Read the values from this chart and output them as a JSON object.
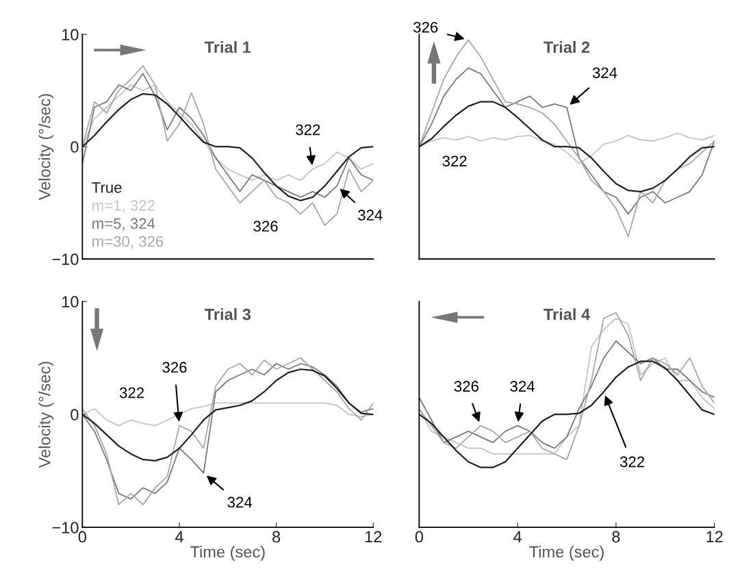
{
  "chart_data": [
    {
      "type": "line",
      "title": "Trial 1",
      "ylabel": "Velocity (°/sec)",
      "x": [
        0,
        0.5,
        1,
        1.5,
        2,
        2.5,
        3,
        3.5,
        4,
        4.5,
        5,
        5.5,
        6,
        6.5,
        7,
        7.5,
        8,
        8.5,
        9,
        9.5,
        10,
        10.5,
        11,
        11.5,
        12
      ],
      "xlim": [
        0,
        12
      ],
      "ylim": [
        -10,
        10
      ],
      "yticks": [
        10,
        0,
        {
          "value": -10,
          "label": "−10"
        }
      ],
      "tick_labels": "y",
      "legend": "bottom left",
      "series": [
        {
          "name": "True",
          "color": "#222222",
          "values": [
            0,
            1.0,
            2.2,
            3.3,
            4.2,
            4.7,
            4.6,
            3.8,
            2.7,
            1.5,
            0.4,
            0,
            0,
            -0.1,
            -1.0,
            -2.3,
            -3.5,
            -4.4,
            -4.8,
            -4.5,
            -3.5,
            -2.2,
            -0.9,
            -0.1,
            0
          ]
        },
        {
          "name": "m=1, 322",
          "color": "#c4c4c4",
          "values": [
            0,
            2.5,
            3.5,
            4.5,
            5.5,
            5.0,
            5.5,
            4.0,
            3.0,
            2.0,
            0.5,
            -1.0,
            -2.0,
            -2.5,
            -3.0,
            -2.5,
            -3.0,
            -2.5,
            -3.0,
            -2.0,
            -1.5,
            -0.5,
            -1.0,
            -2.0,
            -1.5
          ]
        },
        {
          "name": "m=5, 324",
          "color": "#7a7a7a",
          "values": [
            -1.5,
            3.5,
            4.0,
            5.5,
            5.0,
            6.5,
            4.5,
            1.5,
            3.5,
            2.5,
            1.0,
            -1.0,
            -2.5,
            -4.0,
            -2.5,
            -3.0,
            -3.5,
            -4.0,
            -4.5,
            -4.0,
            -4.5,
            -3.5,
            -1.0,
            -2.5,
            -3.0
          ]
        },
        {
          "name": "m=30, 326",
          "color": "#a8a8a8",
          "values": [
            0,
            4.0,
            3.0,
            5.0,
            6.0,
            7.2,
            5.5,
            0.5,
            2.0,
            4.8,
            2.0,
            -2.0,
            -3.5,
            -5.0,
            -4.0,
            -3.0,
            -4.5,
            -5.0,
            -6.0,
            -5.0,
            -7.0,
            -6.0,
            -2.0,
            -4.0,
            -3.0
          ]
        }
      ],
      "annotations": [
        {
          "text": "322",
          "x": 9.5,
          "y": -2.0
        },
        {
          "text": "324",
          "x": 10.5,
          "y": -3.5
        },
        "326"
      ]
    },
    {
      "type": "line",
      "title": "Trial 2",
      "x": [
        0,
        0.5,
        1,
        1.5,
        2,
        2.5,
        3,
        3.5,
        4,
        4.5,
        5,
        5.5,
        6,
        6.5,
        7,
        7.5,
        8,
        8.5,
        9,
        9.5,
        10,
        10.5,
        11,
        11.5,
        12
      ],
      "xlim": [
        0,
        12
      ],
      "ylim": [
        -10,
        10
      ],
      "tick_labels": false,
      "series": [
        {
          "color": "#222222",
          "values": [
            0,
            0.7,
            1.8,
            2.8,
            3.6,
            4.0,
            4.0,
            3.5,
            2.6,
            1.6,
            0.6,
            0,
            0,
            -0.1,
            -1.0,
            -2.2,
            -3.3,
            -3.9,
            -4.0,
            -3.7,
            -3.0,
            -2.0,
            -0.9,
            -0.1,
            0
          ]
        },
        {
          "color": "#c4c4c4",
          "values": [
            0,
            0.5,
            0.8,
            0.6,
            0.9,
            0.5,
            0.8,
            0.6,
            0.9,
            1.0,
            0.5,
            0.2,
            -0.5,
            -1.5,
            -0.8,
            0.2,
            0.5,
            1.0,
            0.6,
            0.5,
            0.8,
            1.2,
            0.8,
            0.6,
            1.0
          ]
        },
        {
          "color": "#7a7a7a",
          "values": [
            0,
            2.0,
            4.5,
            6.0,
            7.0,
            6.5,
            5.0,
            3.5,
            4.0,
            4.5,
            3.5,
            3.8,
            3.5,
            -1.0,
            -2.5,
            -4.0,
            -4.5,
            -6.0,
            -4.5,
            -4.0,
            -5.0,
            -4.5,
            -4.0,
            -2.5,
            0.5
          ]
        },
        {
          "color": "#a8a8a8",
          "values": [
            0,
            3.0,
            6.0,
            8.0,
            9.5,
            8.0,
            6.0,
            4.0,
            3.8,
            3.5,
            3.0,
            2.0,
            0.5,
            -1.0,
            -3.0,
            -4.0,
            -5.5,
            -8.0,
            -4.0,
            -5.0,
            -3.0,
            -2.0,
            -1.5,
            -0.5,
            0.5
          ]
        }
      ],
      "annotations": [
        {
          "text": "326",
          "x": 2.0,
          "y": 9.5
        },
        {
          "text": "324",
          "x": 6.0,
          "y": 3.5
        },
        "322"
      ]
    },
    {
      "type": "line",
      "title": "Trial 3",
      "xlabel": "Time (sec)",
      "ylabel": "Velocity (°/sec)",
      "x": [
        0,
        0.5,
        1,
        1.5,
        2,
        2.5,
        3,
        3.5,
        4,
        4.5,
        5,
        5.5,
        6,
        6.5,
        7,
        7.5,
        8,
        8.5,
        9,
        9.5,
        10,
        10.5,
        11,
        11.5,
        12
      ],
      "xlim": [
        0,
        12
      ],
      "xticks": [
        0,
        4,
        8,
        12
      ],
      "ylim": [
        -10,
        10
      ],
      "yticks": [
        10,
        0,
        {
          "value": -10,
          "label": "−10"
        }
      ],
      "series": [
        {
          "color": "#222222",
          "values": [
            0,
            -0.8,
            -1.8,
            -2.8,
            -3.5,
            -4.0,
            -4.1,
            -3.8,
            -3.0,
            -1.8,
            -0.5,
            0.4,
            0.6,
            0.8,
            1.2,
            2.0,
            3.0,
            3.7,
            4.0,
            3.9,
            3.4,
            2.3,
            1.0,
            0.1,
            0
          ]
        },
        {
          "color": "#c4c4c4",
          "values": [
            0,
            0.5,
            -0.5,
            -1.0,
            -0.5,
            -0.8,
            -1.0,
            -0.5,
            0,
            0.5,
            0.7,
            1.0,
            1.0,
            1.0,
            1.0,
            1.0,
            1.0,
            1.0,
            1.0,
            1.0,
            1.0,
            0.8,
            0,
            -0.2,
            0
          ]
        },
        {
          "color": "#7a7a7a",
          "values": [
            0,
            -1.5,
            -4.0,
            -7.0,
            -7.5,
            -6.5,
            -7.0,
            -6.0,
            -3.0,
            -4.0,
            -5.2,
            2.0,
            3.0,
            3.5,
            4.0,
            3.5,
            4.5,
            4.0,
            4.5,
            4.2,
            3.5,
            2.5,
            1.0,
            0.2,
            0.5
          ]
        },
        {
          "color": "#a8a8a8",
          "values": [
            0.5,
            -1.0,
            -3.5,
            -8.0,
            -7.0,
            -8.0,
            -6.5,
            -5.5,
            -1.0,
            -1.5,
            -3.0,
            2.5,
            4.0,
            4.5,
            3.5,
            4.8,
            4.0,
            4.5,
            5.0,
            4.0,
            3.0,
            2.0,
            0.5,
            -0.5,
            1.0
          ]
        }
      ],
      "annotations": [
        "322",
        {
          "text": "326",
          "x": 4.0,
          "y": -1.0
        },
        {
          "text": "324",
          "x": 5.0,
          "y": -5.2
        }
      ]
    },
    {
      "type": "line",
      "title": "Trial 4",
      "xlabel": "Time (sec)",
      "x": [
        0,
        0.5,
        1,
        1.5,
        2,
        2.5,
        3,
        3.5,
        4,
        4.5,
        5,
        5.5,
        6,
        6.5,
        7,
        7.5,
        8,
        8.5,
        9,
        9.5,
        10,
        10.5,
        11,
        11.5,
        12
      ],
      "xlim": [
        0,
        12
      ],
      "xticks": [
        0,
        4,
        8,
        12
      ],
      "ylim": [
        -10,
        10
      ],
      "tick_labels": "x",
      "series": [
        {
          "color": "#222222",
          "values": [
            0,
            -0.8,
            -2.0,
            -3.2,
            -4.2,
            -4.7,
            -4.7,
            -4.2,
            -3.0,
            -1.8,
            -0.6,
            0,
            0,
            0.1,
            0.8,
            2.0,
            3.3,
            4.2,
            4.7,
            4.7,
            4.1,
            3.0,
            1.7,
            0.4,
            0
          ]
        },
        {
          "color": "#c4c4c4",
          "values": [
            0.5,
            -1.5,
            -2.0,
            -2.5,
            -3.0,
            -3.0,
            -3.5,
            -3.5,
            -3.5,
            -3.5,
            -3.5,
            -3.5,
            -2.0,
            -1.0,
            6.0,
            7.5,
            8.5,
            8.0,
            3.5,
            4.5,
            5.0,
            3.0,
            3.0,
            1.5,
            0.5
          ]
        },
        {
          "color": "#7a7a7a",
          "values": [
            1.5,
            -0.5,
            -2.5,
            -2.0,
            -1.5,
            -2.0,
            -2.5,
            -1.5,
            -1.0,
            -1.5,
            -2.5,
            -3.0,
            -2.0,
            0.5,
            2.5,
            5.0,
            6.5,
            5.5,
            4.5,
            5.0,
            4.0,
            4.0,
            3.0,
            2.0,
            1.5
          ]
        },
        {
          "color": "#a8a8a8",
          "values": [
            0.5,
            -1.0,
            -2.5,
            -3.0,
            -2.0,
            -1.0,
            -1.5,
            -2.5,
            -2.0,
            -1.5,
            -3.0,
            -3.5,
            -4.0,
            -1.0,
            3.0,
            8.5,
            9.0,
            7.0,
            3.0,
            5.0,
            4.5,
            3.5,
            5.0,
            2.5,
            1.0
          ]
        }
      ],
      "annotations": [
        {
          "text": "326",
          "x": 2.5,
          "y": -1.0
        },
        {
          "text": "324",
          "x": 4.0,
          "y": -1.0
        },
        {
          "text": "322",
          "x": 7.5,
          "y": 2.0
        }
      ]
    }
  ]
}
